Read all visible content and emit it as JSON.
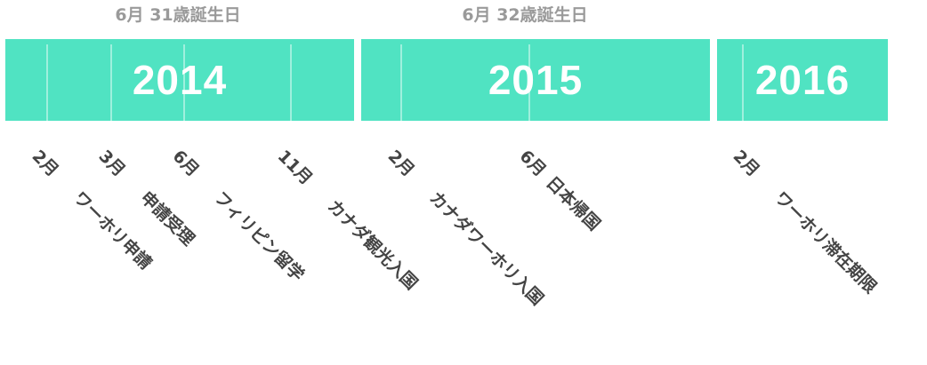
{
  "birthdays": [
    {
      "label": "6月 31歳誕生日"
    },
    {
      "label": "6月 32歳誕生日"
    }
  ],
  "years": [
    {
      "label": "2014"
    },
    {
      "label": "2015"
    },
    {
      "label": "2016"
    }
  ],
  "events": [
    {
      "month": "2月",
      "text": "ワーホリ申請"
    },
    {
      "month": "3月",
      "text": "申請受理"
    },
    {
      "month": "6月",
      "text": "フィリピン留学"
    },
    {
      "month": "11月",
      "text": "カナダ観光入国"
    },
    {
      "month": "2月",
      "text": "カナダワーホリ入国"
    },
    {
      "month": "6月",
      "text": "日本帰国"
    },
    {
      "month": "2月",
      "text": "ワーホリ滞在期限"
    }
  ],
  "colors": {
    "bar": "#50e3c2",
    "year_text": "#ffffff",
    "birthday_text": "#9a9a9a",
    "event_text": "#444444"
  }
}
